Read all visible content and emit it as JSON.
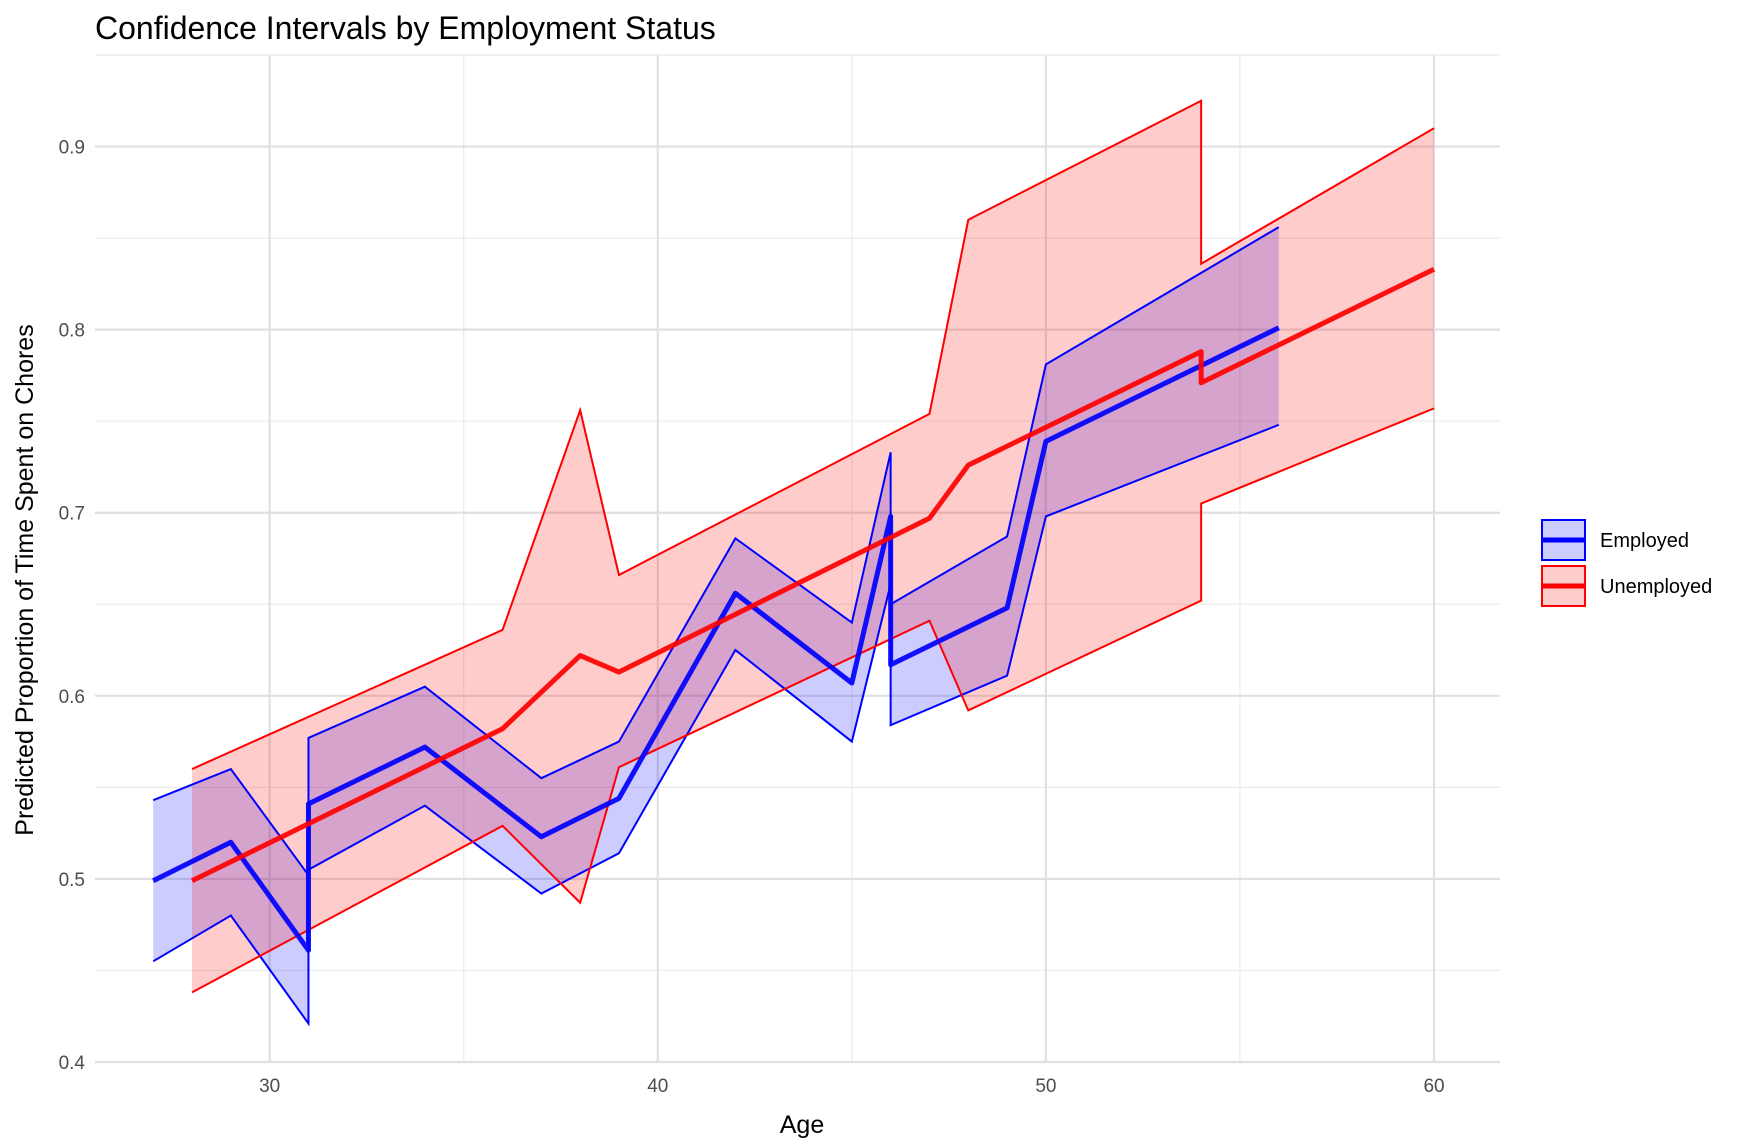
{
  "chart_data": {
    "type": "line",
    "title": "Confidence Intervals by Employment Status",
    "xlabel": "Age",
    "ylabel": "Predicted Proportion of Time Spent on Chores",
    "xlim": [
      25.5,
      61.7
    ],
    "ylim": [
      0.4,
      0.95
    ],
    "x_ticks": [
      30,
      40,
      50,
      60
    ],
    "x_tick_labels": [
      "30",
      "40",
      "50",
      "60"
    ],
    "y_ticks": [
      0.4,
      0.5,
      0.6,
      0.7,
      0.8,
      0.9
    ],
    "y_tick_labels": [
      "0.4",
      "0.5",
      "0.6",
      "0.7",
      "0.8",
      "0.9"
    ],
    "grid": true,
    "legend_position": "right",
    "series": [
      {
        "name": "Employed",
        "color": "#0000ff",
        "fill": "#0000ff",
        "fill_opacity": 0.2,
        "points": [
          {
            "x": 27,
            "y": 0.499,
            "lo": 0.455,
            "hi": 0.543
          },
          {
            "x": 29,
            "y": 0.52,
            "lo": 0.48,
            "hi": 0.56
          },
          {
            "x": 31,
            "y": 0.461,
            "lo": 0.421,
            "hi": 0.502
          },
          {
            "x": 31,
            "y": 0.541,
            "lo": 0.505,
            "hi": 0.577
          },
          {
            "x": 34,
            "y": 0.572,
            "lo": 0.54,
            "hi": 0.605
          },
          {
            "x": 37,
            "y": 0.523,
            "lo": 0.492,
            "hi": 0.555
          },
          {
            "x": 39,
            "y": 0.544,
            "lo": 0.514,
            "hi": 0.575
          },
          {
            "x": 42,
            "y": 0.656,
            "lo": 0.625,
            "hi": 0.686
          },
          {
            "x": 45,
            "y": 0.607,
            "lo": 0.575,
            "hi": 0.64
          },
          {
            "x": 46,
            "y": 0.698,
            "lo": 0.661,
            "hi": 0.733
          },
          {
            "x": 46,
            "y": 0.617,
            "lo": 0.584,
            "hi": 0.65
          },
          {
            "x": 49,
            "y": 0.648,
            "lo": 0.611,
            "hi": 0.687
          },
          {
            "x": 50,
            "y": 0.739,
            "lo": 0.698,
            "hi": 0.781
          },
          {
            "x": 56,
            "y": 0.801,
            "lo": 0.748,
            "hi": 0.856
          }
        ]
      },
      {
        "name": "Unemployed",
        "color": "#ff0000",
        "fill": "#ff0000",
        "fill_opacity": 0.2,
        "points": [
          {
            "x": 28,
            "y": 0.499,
            "lo": 0.438,
            "hi": 0.56
          },
          {
            "x": 36,
            "y": 0.582,
            "lo": 0.529,
            "hi": 0.636
          },
          {
            "x": 38,
            "y": 0.622,
            "lo": 0.487,
            "hi": 0.756
          },
          {
            "x": 39,
            "y": 0.613,
            "lo": 0.561,
            "hi": 0.666
          },
          {
            "x": 47,
            "y": 0.697,
            "lo": 0.641,
            "hi": 0.754
          },
          {
            "x": 48,
            "y": 0.726,
            "lo": 0.592,
            "hi": 0.86
          },
          {
            "x": 54,
            "y": 0.788,
            "lo": 0.652,
            "hi": 0.925
          },
          {
            "x": 54,
            "y": 0.771,
            "lo": 0.705,
            "hi": 0.836
          },
          {
            "x": 60,
            "y": 0.833,
            "lo": 0.757,
            "hi": 0.91
          }
        ]
      }
    ]
  }
}
